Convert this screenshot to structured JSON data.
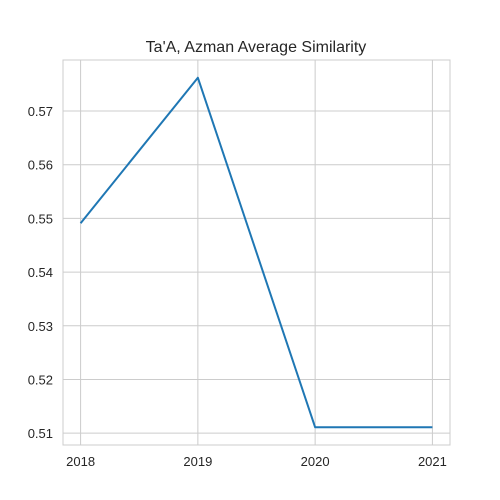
{
  "chart_data": {
    "type": "line",
    "title": "Ta'A, Azman Average Similarity",
    "xlabel": "",
    "ylabel": "",
    "x": [
      2018,
      2019,
      2020,
      2021
    ],
    "x_tick_labels": [
      "2018",
      "2019",
      "2020",
      "2021"
    ],
    "y_ticks": [
      0.51,
      0.52,
      0.53,
      0.54,
      0.55,
      0.56,
      0.57
    ],
    "y_tick_labels": [
      "0.51",
      "0.52",
      "0.53",
      "0.54",
      "0.55",
      "0.56",
      "0.57"
    ],
    "series": [
      {
        "values": [
          0.5491,
          0.5762,
          0.5111,
          0.5111
        ],
        "color": "#1f77b4"
      }
    ],
    "ylim": [
      0.5078,
      0.5795
    ],
    "xlim": [
      2017.85,
      2021.15
    ],
    "grid": true,
    "legend": "none"
  }
}
